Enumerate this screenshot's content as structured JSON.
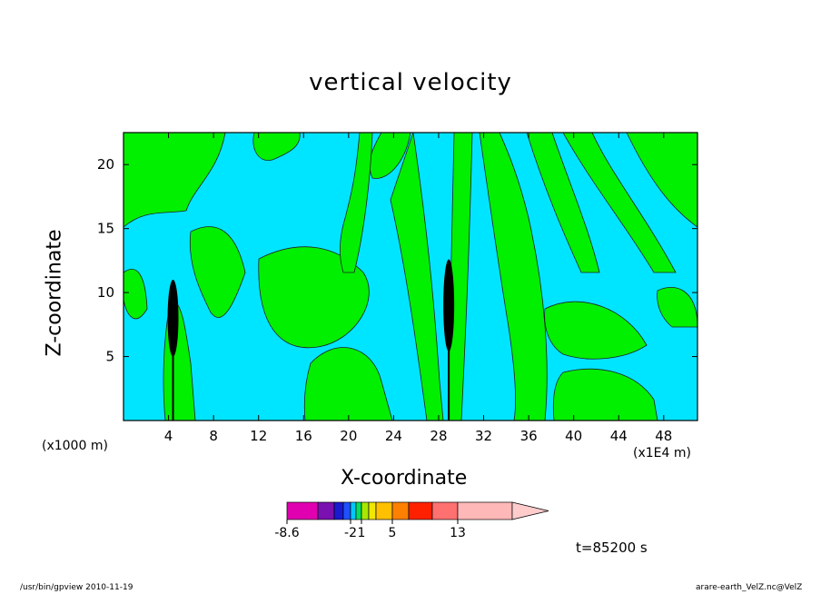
{
  "chart_data": {
    "type": "heatmap",
    "title": "vertical velocity",
    "xlabel": "X-coordinate",
    "ylabel": "Z-coordinate",
    "x_unit_left": "(x1000 m)",
    "x_unit_right": "(x1E4 m)",
    "x_ticks": [
      "4",
      "8",
      "12",
      "16",
      "20",
      "24",
      "28",
      "32",
      "36",
      "40",
      "44",
      "48"
    ],
    "y_ticks": [
      "5",
      "10",
      "15",
      "20"
    ],
    "xlim": [
      0,
      51
    ],
    "ylim": [
      0,
      22.5
    ],
    "colorbar": {
      "tick_labels": [
        "-8.6",
        "-2",
        "1",
        "5",
        "13"
      ],
      "colors": [
        "#e000b0",
        "#7a10b0",
        "#1a1ad0",
        "#2050ff",
        "#00c8ff",
        "#00e060",
        "#a8e800",
        "#f0e800",
        "#ffc000",
        "#ff8000",
        "#ff2000",
        "#ff7070",
        "#ffb8b8",
        "#ffcccc"
      ]
    },
    "fill_colors": {
      "negative": "#00e5ff",
      "positive": "#00f000",
      "updraft_core": "#000000"
    },
    "time_label": "t=85200 s"
  },
  "footer": {
    "left": "/usr/bin/gpview   2010-11-19",
    "right": "arare-earth_VelZ.nc@VelZ"
  }
}
